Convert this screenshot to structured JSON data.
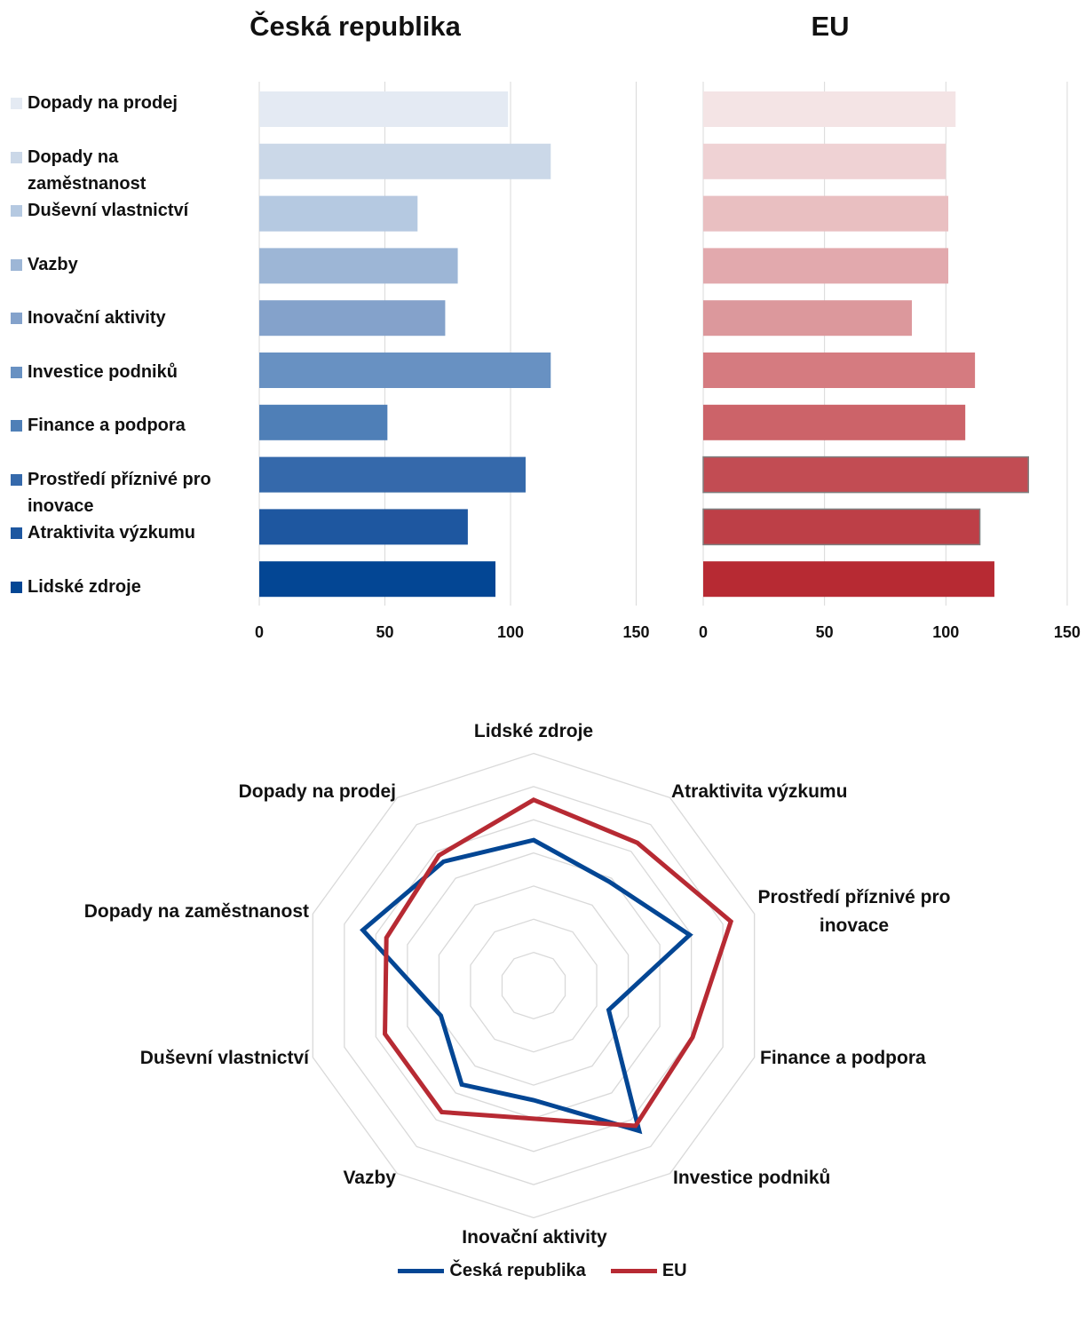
{
  "charts": {
    "left_title": "Česká republika",
    "right_title": "EU",
    "ticks": [
      "0",
      "50",
      "100",
      "150"
    ]
  },
  "chart_data": [
    {
      "type": "bar",
      "orientation": "horizontal",
      "title": "Česká republika",
      "categories": [
        "Dopady na prodej",
        "Dopady na zaměstnanost",
        "Duševní vlastnictví",
        "Vazby",
        "Inovační aktivity",
        "Investice podniků",
        "Finance a podpora",
        "Prostředí příznivé pro inovace",
        "Atraktivita výzkumu",
        "Lidské zdroje"
      ],
      "values": [
        99,
        116,
        63,
        79,
        74,
        116,
        51,
        106,
        83,
        94
      ],
      "xlim": [
        0,
        150
      ],
      "colors": [
        "#e4eaf3",
        "#cbd8e8",
        "#b5c9e1",
        "#9db6d6",
        "#84a2cb",
        "#6891c2",
        "#4f7fb7",
        "#3569ab",
        "#1e57a0",
        "#034694"
      ],
      "legend": "left",
      "grid": true
    },
    {
      "type": "bar",
      "orientation": "horizontal",
      "title": "EU",
      "categories": [
        "Dopady na prodej",
        "Dopady na zaměstnanost",
        "Duševní vlastnictví",
        "Vazby",
        "Inovační aktivity",
        "Investice podniků",
        "Finance a podpora",
        "Prostředí příznivé pro inovace",
        "Atraktivita výzkumu",
        "Lidské zdroje"
      ],
      "values": [
        104,
        100,
        101,
        101,
        86,
        112,
        108,
        134,
        114,
        120
      ],
      "xlim": [
        0,
        150
      ],
      "colors": [
        "#f4e4e5",
        "#efd2d4",
        "#e9bfc1",
        "#e2a9ad",
        "#dc989c",
        "#d57b80",
        "#cc6369",
        "#c24c53",
        "#bd3f47",
        "#b72a33"
      ],
      "grid": true
    },
    {
      "type": "radar",
      "axes": [
        "Lidské zdroje",
        "Atraktivita výzkumu",
        "Prostředí příznivé pro inovace",
        "Finance a podpora",
        "Investice podniků",
        "Inovační aktivity",
        "Vazby",
        "Duševní vlastnictví",
        "Dopady na zaměstnanost",
        "Dopady na prodej"
      ],
      "rmax": 150,
      "series": [
        {
          "name": "Česká republika",
          "color": "#034694",
          "values": [
            94,
            83,
            106,
            51,
            116,
            74,
            79,
            63,
            116,
            99
          ]
        },
        {
          "name": "EU",
          "color": "#b72a33",
          "values": [
            120,
            114,
            134,
            108,
            112,
            86,
            101,
            101,
            100,
            104
          ]
        }
      ],
      "legend": "bottom"
    }
  ]
}
